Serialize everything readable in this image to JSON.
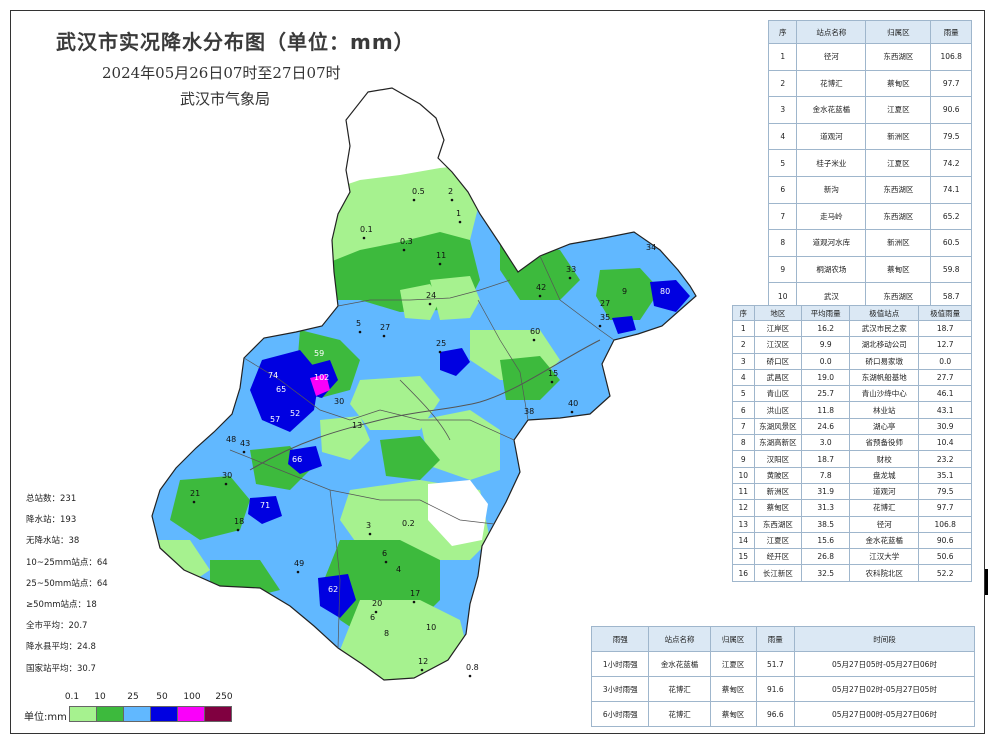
{
  "header": {
    "title": "武汉市实况降水分布图（单位：mm）",
    "subtitle": "2024年05月26日07时至27日07时",
    "agency": "武汉市气象局"
  },
  "map_labels": {
    "d1": "0.5",
    "d2": "2",
    "d3": "1",
    "d4": "0.1",
    "d5": "0.3",
    "d6": "11",
    "d7": "33",
    "d8": "5",
    "d9": "27",
    "d10": "24",
    "d11": "25",
    "d12": "42",
    "d13": "59",
    "d14": "74",
    "d15": "65",
    "d16": "102",
    "d17": "57",
    "d18": "52",
    "d19": "66",
    "d20": "35",
    "d21": "60",
    "d22": "27",
    "d23": "9",
    "d24": "80",
    "d25": "34",
    "d26": "15",
    "d27": "40",
    "d28": "38",
    "d29": "43",
    "d30": "48",
    "d31": "30",
    "d32": "21",
    "d33": "71",
    "d34": "18",
    "d35": "0.2",
    "d36": "3",
    "d37": "6",
    "d38": "49",
    "d39": "62",
    "d40": "20",
    "d41": "17",
    "d42": "4",
    "d43": "12",
    "d44": "10",
    "d45": "0.8",
    "d46": "8",
    "d47": "13",
    "d48": "30",
    "d49": "6"
  },
  "stats": [
    "总站数：231",
    "降水站：193",
    "无降水站：38",
    "10~25mm站点：64",
    "25~50mm站点：64",
    "≥50mm站点：18",
    "全市平均：20.7",
    "降水县平均：24.8",
    "国家站平均：30.7"
  ],
  "legend": {
    "unit_label": "单位:mm",
    "ticks": [
      "0.1",
      "10",
      "25",
      "50",
      "100",
      "250"
    ],
    "colors": [
      "#a6f28f",
      "#3dba3d",
      "#61b8ff",
      "#0000e1",
      "#fa00fa",
      "#800040"
    ]
  },
  "top_stations": {
    "headers": [
      "序",
      "站点名称",
      "归属区",
      "雨量"
    ],
    "rows": [
      [
        "1",
        "径河",
        "东西湖区",
        "106.8"
      ],
      [
        "2",
        "花博汇",
        "蔡甸区",
        "97.7"
      ],
      [
        "3",
        "金水花蓝楯",
        "江夏区",
        "90.6"
      ],
      [
        "4",
        "道观河",
        "新洲区",
        "79.5"
      ],
      [
        "5",
        "桂子米业",
        "江夏区",
        "74.2"
      ],
      [
        "6",
        "新沟",
        "东西湖区",
        "74.1"
      ],
      [
        "7",
        "走马岭",
        "东西湖区",
        "65.2"
      ],
      [
        "8",
        "道观河水库",
        "新洲区",
        "60.5"
      ],
      [
        "9",
        "桐湖农场",
        "蔡甸区",
        "59.8"
      ],
      [
        "10",
        "武汉",
        "东西湖区",
        "58.7"
      ]
    ]
  },
  "district_stats": {
    "headers": [
      "序",
      "地区",
      "平均雨量",
      "极值站点",
      "极值雨量"
    ],
    "rows": [
      [
        "1",
        "江岸区",
        "16.2",
        "武汉市民之家",
        "18.7"
      ],
      [
        "2",
        "江汉区",
        "9.9",
        "湖北移动公司",
        "12.7"
      ],
      [
        "3",
        "硚口区",
        "0.0",
        "硚口易家墩",
        "0.0"
      ],
      [
        "4",
        "武昌区",
        "19.0",
        "东湖帆船基地",
        "27.7"
      ],
      [
        "5",
        "青山区",
        "25.7",
        "青山沙绛中心",
        "46.1"
      ],
      [
        "6",
        "洪山区",
        "11.8",
        "林业站",
        "43.1"
      ],
      [
        "7",
        "东湖风景区",
        "24.6",
        "湖心亭",
        "30.9"
      ],
      [
        "8",
        "东湖高新区",
        "3.0",
        "省预备役师",
        "10.4"
      ],
      [
        "9",
        "汉阳区",
        "18.7",
        "财校",
        "23.2"
      ],
      [
        "10",
        "黄陂区",
        "7.8",
        "盘龙城",
        "35.1"
      ],
      [
        "11",
        "新洲区",
        "31.9",
        "道观河",
        "79.5"
      ],
      [
        "12",
        "蔡甸区",
        "31.3",
        "花博汇",
        "97.7"
      ],
      [
        "13",
        "东西湖区",
        "38.5",
        "径河",
        "106.8"
      ],
      [
        "14",
        "江夏区",
        "15.6",
        "金水花蓝楯",
        "90.6"
      ],
      [
        "15",
        "经开区",
        "26.8",
        "江汉大学",
        "50.6"
      ],
      [
        "16",
        "长江新区",
        "32.5",
        "农科院北区",
        "52.2"
      ]
    ]
  },
  "intensity": {
    "headers": [
      "雨强",
      "站点名称",
      "归属区",
      "雨量",
      "时间段"
    ],
    "rows": [
      [
        "1小时雨强",
        "金水花蓝楯",
        "江夏区",
        "51.7",
        "05月27日05时-05月27日06时"
      ],
      [
        "3小时雨强",
        "花博汇",
        "蔡甸区",
        "91.6",
        "05月27日02时-05月27日05时"
      ],
      [
        "6小时雨强",
        "花博汇",
        "蔡甸区",
        "96.6",
        "05月27日00时-05月27日06时"
      ]
    ]
  }
}
